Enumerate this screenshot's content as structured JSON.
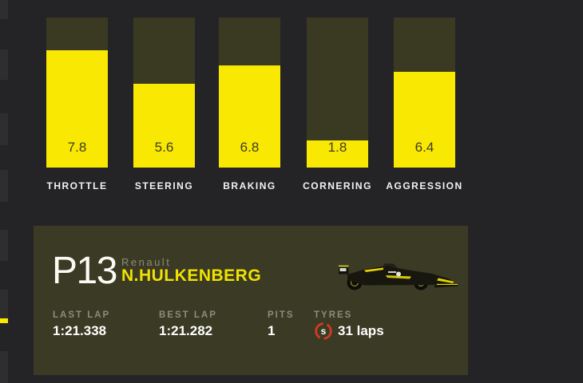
{
  "colors": {
    "background": "#242427",
    "list_edge_segment": "#2e2e2e",
    "bar_track_olive": "#3a3a23",
    "bar_fill_yellow": "#f9e802",
    "bar_value_text": "#3c3c2d",
    "panel_background": "#3a3a25",
    "muted_label_gray": "#8c8c7e",
    "driver_name_yellow": "#f0e202",
    "primary_text_white": "#ffffff",
    "tyre_soft_red": "#d43a20",
    "selected_marker_yellow": "#f9e802"
  },
  "chart_data": {
    "type": "bar",
    "categories": [
      "THROTTLE",
      "STEERING",
      "BRAKING",
      "CORNERING",
      "AGGRESSION"
    ],
    "values": [
      7.8,
      5.6,
      6.8,
      1.8,
      6.4
    ],
    "ylim": [
      0,
      10
    ],
    "title": "",
    "xlabel": "",
    "ylabel": "",
    "grid": "off",
    "legend": "none",
    "notes": "value labels printed near bar bottoms inside yellow fill"
  },
  "driver_panel": {
    "position": "P13",
    "team": "Renault",
    "driver": "N.HULKENBERG",
    "stats": {
      "last_lap": {
        "label": "LAST LAP",
        "value": "1:21.338"
      },
      "best_lap": {
        "label": "BEST LAP",
        "value": "1:21.282"
      },
      "pits": {
        "label": "PITS",
        "value": "1"
      },
      "tyres": {
        "label": "TYRES",
        "compound_letter": "s",
        "value": "31 laps"
      }
    }
  }
}
